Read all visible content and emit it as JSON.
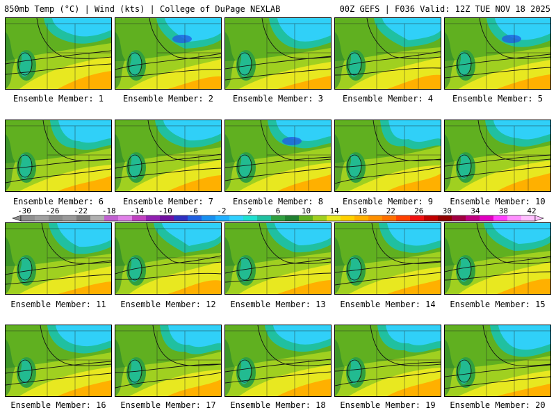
{
  "header": {
    "left": "850mb Temp (°C) | Wind (kts) | College of DuPage NEXLAB",
    "right": "00Z GEFS | F036 Valid: 12Z TUE NOV 18 2025"
  },
  "label_prefix": "Ensemble Member: ",
  "members": [
    "1",
    "2",
    "3",
    "4",
    "5",
    "6",
    "7",
    "8",
    "9",
    "10",
    "11",
    "12",
    "13",
    "14",
    "15",
    "16",
    "17",
    "18",
    "19",
    "20"
  ],
  "colorbar": {
    "tick_labels": [
      "-30",
      "-26",
      "-22",
      "-18",
      "-14",
      "-10",
      "-6",
      "-2",
      "2",
      "6",
      "10",
      "14",
      "18",
      "22",
      "26",
      "30",
      "34",
      "38",
      "42"
    ],
    "colors": [
      "#909090",
      "#a0a0a0",
      "#8a8a8a",
      "#9a9a9a",
      "#7c7c7c",
      "#b0b0b0",
      "#c060d0",
      "#e080e8",
      "#c040c0",
      "#9020b0",
      "#7010a0",
      "#3030c0",
      "#2060e0",
      "#1890f0",
      "#20b0ff",
      "#30d0ff",
      "#20e0d0",
      "#20c0a0",
      "#30a040",
      "#208030",
      "#60b020",
      "#a0d020",
      "#e8e820",
      "#ffd000",
      "#ffb000",
      "#ff9000",
      "#ff7000",
      "#ff4000",
      "#f01010",
      "#c00000",
      "#900000",
      "#a00040",
      "#c00080",
      "#e000c0",
      "#ff40ff",
      "#ff90ff",
      "#ffc0ff"
    ]
  },
  "map_colors": {
    "cold": "#30d0f8",
    "cool": "#20c0a0",
    "mild": "#30a040",
    "green": "#60b020",
    "warm": "#a0d020",
    "yellow": "#e8e820",
    "orange": "#ffb000",
    "deep_blue": "#2060e0",
    "dark_green": "#208030"
  }
}
